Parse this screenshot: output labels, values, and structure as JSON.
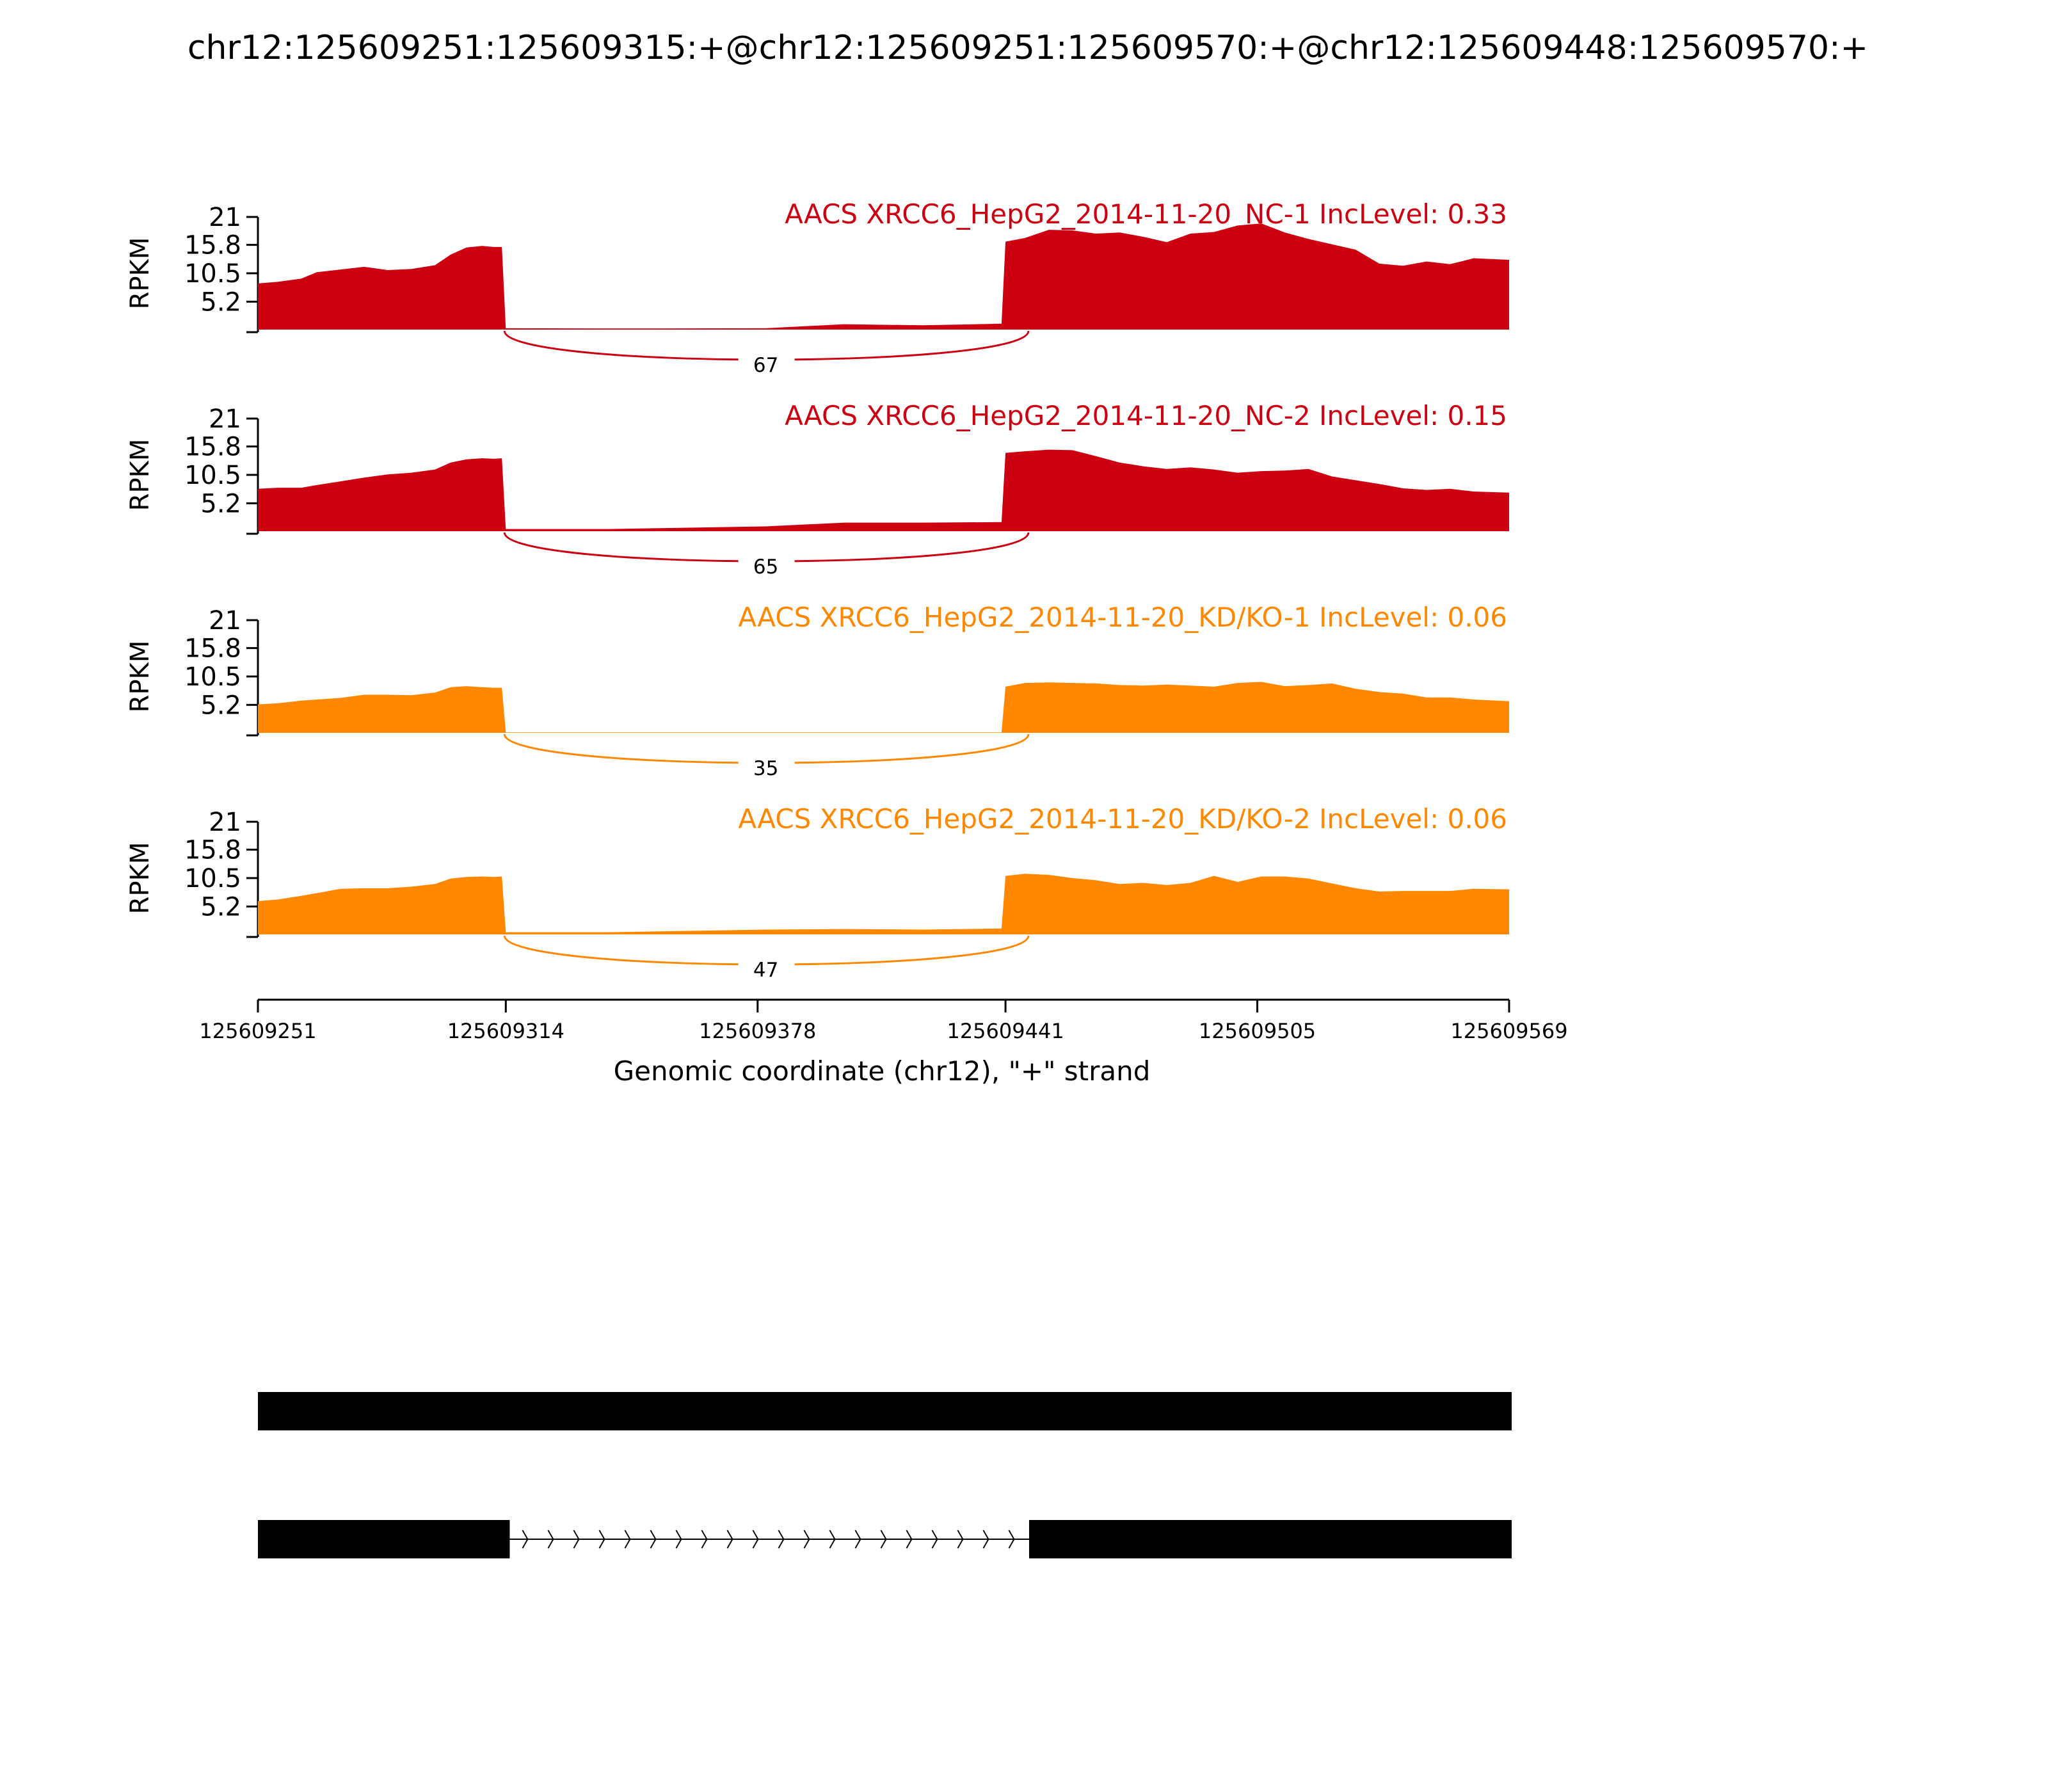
{
  "chart_data": {
    "type": "area",
    "title": "chr12:125609251:125609315:+@chr12:125609251:125609570:+@chr12:125609448:125609570:+",
    "xlabel": "Genomic coordinate (chr12), \"+\" strand",
    "ylabel": "RPKM",
    "xlim": [
      125609251,
      125609569
    ],
    "ylim": [
      0,
      21
    ],
    "x_ticks": [
      "125609251",
      "125609314",
      "125609378",
      "125609441",
      "125609505",
      "125609569"
    ],
    "y_ticks": [
      "5.2",
      "10.5",
      "15.8",
      "21"
    ],
    "colors": {
      "nc": "#cc0011",
      "kd": "#ff8800"
    },
    "series": [
      {
        "name": "AACS XRCC6_HepG2_2014-11-20_NC-1 IncLevel: 0.33",
        "color_key": "nc",
        "junction_count": "67",
        "values": [
          [
            125609251,
            8.6
          ],
          [
            125609256,
            8.9
          ],
          [
            125609262,
            9.5
          ],
          [
            125609266,
            10.7
          ],
          [
            125609272,
            11.2
          ],
          [
            125609278,
            11.7
          ],
          [
            125609284,
            11.1
          ],
          [
            125609290,
            11.3
          ],
          [
            125609296,
            12.0
          ],
          [
            125609300,
            14.0
          ],
          [
            125609304,
            15.3
          ],
          [
            125609308,
            15.6
          ],
          [
            125609311,
            15.4
          ],
          [
            125609313,
            15.4
          ],
          [
            125609314,
            0.25
          ],
          [
            125609340,
            0.2
          ],
          [
            125609380,
            0.25
          ],
          [
            125609400,
            1.0
          ],
          [
            125609420,
            0.8
          ],
          [
            125609440,
            1.1
          ],
          [
            125609441,
            16.4
          ],
          [
            125609446,
            17.1
          ],
          [
            125609452,
            18.6
          ],
          [
            125609458,
            18.5
          ],
          [
            125609464,
            17.9
          ],
          [
            125609470,
            18.1
          ],
          [
            125609476,
            17.3
          ],
          [
            125609482,
            16.3
          ],
          [
            125609488,
            17.9
          ],
          [
            125609494,
            18.2
          ],
          [
            125609500,
            19.4
          ],
          [
            125609506,
            19.8
          ],
          [
            125609512,
            18.1
          ],
          [
            125609518,
            16.9
          ],
          [
            125609524,
            15.9
          ],
          [
            125609530,
            14.9
          ],
          [
            125609536,
            12.3
          ],
          [
            125609542,
            11.9
          ],
          [
            125609548,
            12.7
          ],
          [
            125609554,
            12.2
          ],
          [
            125609560,
            13.3
          ],
          [
            125609569,
            13.0
          ]
        ]
      },
      {
        "name": "AACS XRCC6_HepG2_2014-11-20_NC-2 IncLevel: 0.15",
        "color_key": "nc",
        "junction_count": "65",
        "values": [
          [
            125609251,
            7.9
          ],
          [
            125609256,
            8.1
          ],
          [
            125609262,
            8.1
          ],
          [
            125609266,
            8.6
          ],
          [
            125609272,
            9.3
          ],
          [
            125609278,
            10.0
          ],
          [
            125609284,
            10.6
          ],
          [
            125609290,
            10.9
          ],
          [
            125609296,
            11.5
          ],
          [
            125609300,
            12.8
          ],
          [
            125609304,
            13.4
          ],
          [
            125609308,
            13.6
          ],
          [
            125609311,
            13.5
          ],
          [
            125609313,
            13.6
          ],
          [
            125609314,
            0.4
          ],
          [
            125609340,
            0.4
          ],
          [
            125609380,
            0.9
          ],
          [
            125609400,
            1.6
          ],
          [
            125609420,
            1.6
          ],
          [
            125609440,
            1.7
          ],
          [
            125609441,
            14.6
          ],
          [
            125609446,
            14.9
          ],
          [
            125609452,
            15.2
          ],
          [
            125609458,
            15.1
          ],
          [
            125609464,
            14.0
          ],
          [
            125609470,
            12.8
          ],
          [
            125609476,
            12.1
          ],
          [
            125609482,
            11.6
          ],
          [
            125609488,
            11.9
          ],
          [
            125609494,
            11.5
          ],
          [
            125609500,
            10.9
          ],
          [
            125609506,
            11.2
          ],
          [
            125609512,
            11.3
          ],
          [
            125609518,
            11.6
          ],
          [
            125609524,
            10.2
          ],
          [
            125609530,
            9.5
          ],
          [
            125609536,
            8.8
          ],
          [
            125609542,
            8.0
          ],
          [
            125609548,
            7.7
          ],
          [
            125609554,
            7.9
          ],
          [
            125609560,
            7.4
          ],
          [
            125609569,
            7.2
          ]
        ]
      },
      {
        "name": "AACS XRCC6_HepG2_2014-11-20_KD/KO-1 IncLevel: 0.06",
        "color_key": "kd",
        "junction_count": "35",
        "values": [
          [
            125609251,
            5.3
          ],
          [
            125609256,
            5.5
          ],
          [
            125609262,
            6.0
          ],
          [
            125609266,
            6.2
          ],
          [
            125609272,
            6.5
          ],
          [
            125609278,
            7.1
          ],
          [
            125609284,
            7.1
          ],
          [
            125609290,
            7.0
          ],
          [
            125609296,
            7.5
          ],
          [
            125609300,
            8.5
          ],
          [
            125609304,
            8.7
          ],
          [
            125609308,
            8.5
          ],
          [
            125609311,
            8.4
          ],
          [
            125609313,
            8.4
          ],
          [
            125609314,
            0.1
          ],
          [
            125609340,
            0.1
          ],
          [
            125609380,
            0.1
          ],
          [
            125609400,
            0.1
          ],
          [
            125609420,
            0.1
          ],
          [
            125609440,
            0.1
          ],
          [
            125609441,
            8.6
          ],
          [
            125609446,
            9.3
          ],
          [
            125609452,
            9.4
          ],
          [
            125609458,
            9.3
          ],
          [
            125609464,
            9.2
          ],
          [
            125609470,
            8.9
          ],
          [
            125609476,
            8.8
          ],
          [
            125609482,
            9.0
          ],
          [
            125609488,
            8.8
          ],
          [
            125609494,
            8.6
          ],
          [
            125609500,
            9.3
          ],
          [
            125609506,
            9.5
          ],
          [
            125609512,
            8.7
          ],
          [
            125609518,
            8.9
          ],
          [
            125609524,
            9.2
          ],
          [
            125609530,
            8.2
          ],
          [
            125609536,
            7.6
          ],
          [
            125609542,
            7.3
          ],
          [
            125609548,
            6.6
          ],
          [
            125609554,
            6.6
          ],
          [
            125609560,
            6.2
          ],
          [
            125609569,
            5.9
          ]
        ]
      },
      {
        "name": "AACS XRCC6_HepG2_2014-11-20_KD/KO-2 IncLevel: 0.06",
        "color_key": "kd",
        "junction_count": "47",
        "values": [
          [
            125609251,
            6.2
          ],
          [
            125609256,
            6.5
          ],
          [
            125609262,
            7.2
          ],
          [
            125609266,
            7.7
          ],
          [
            125609272,
            8.5
          ],
          [
            125609278,
            8.6
          ],
          [
            125609284,
            8.6
          ],
          [
            125609290,
            8.9
          ],
          [
            125609296,
            9.4
          ],
          [
            125609300,
            10.4
          ],
          [
            125609304,
            10.7
          ],
          [
            125609308,
            10.8
          ],
          [
            125609311,
            10.7
          ],
          [
            125609313,
            10.8
          ],
          [
            125609314,
            0.4
          ],
          [
            125609340,
            0.4
          ],
          [
            125609380,
            0.9
          ],
          [
            125609400,
            1.0
          ],
          [
            125609420,
            0.9
          ],
          [
            125609440,
            1.1
          ],
          [
            125609441,
            10.9
          ],
          [
            125609446,
            11.3
          ],
          [
            125609452,
            11.1
          ],
          [
            125609458,
            10.5
          ],
          [
            125609464,
            10.1
          ],
          [
            125609470,
            9.4
          ],
          [
            125609476,
            9.6
          ],
          [
            125609482,
            9.2
          ],
          [
            125609488,
            9.6
          ],
          [
            125609494,
            10.9
          ],
          [
            125609500,
            9.8
          ],
          [
            125609506,
            10.8
          ],
          [
            125609512,
            10.8
          ],
          [
            125609518,
            10.4
          ],
          [
            125609524,
            9.5
          ],
          [
            125609530,
            8.6
          ],
          [
            125609536,
            8.0
          ],
          [
            125609542,
            8.1
          ],
          [
            125609548,
            8.1
          ],
          [
            125609554,
            8.1
          ],
          [
            125609560,
            8.5
          ],
          [
            125609569,
            8.4
          ]
        ]
      }
    ],
    "junction": {
      "start": 125609314,
      "end": 125609447
    },
    "isoforms": [
      {
        "exons": [
          [
            125609251,
            125609569
          ]
        ]
      },
      {
        "exons": [
          [
            125609251,
            125609315
          ],
          [
            125609447,
            125609569
          ]
        ],
        "introns": [
          [
            125609315,
            125609447
          ]
        ]
      }
    ]
  }
}
